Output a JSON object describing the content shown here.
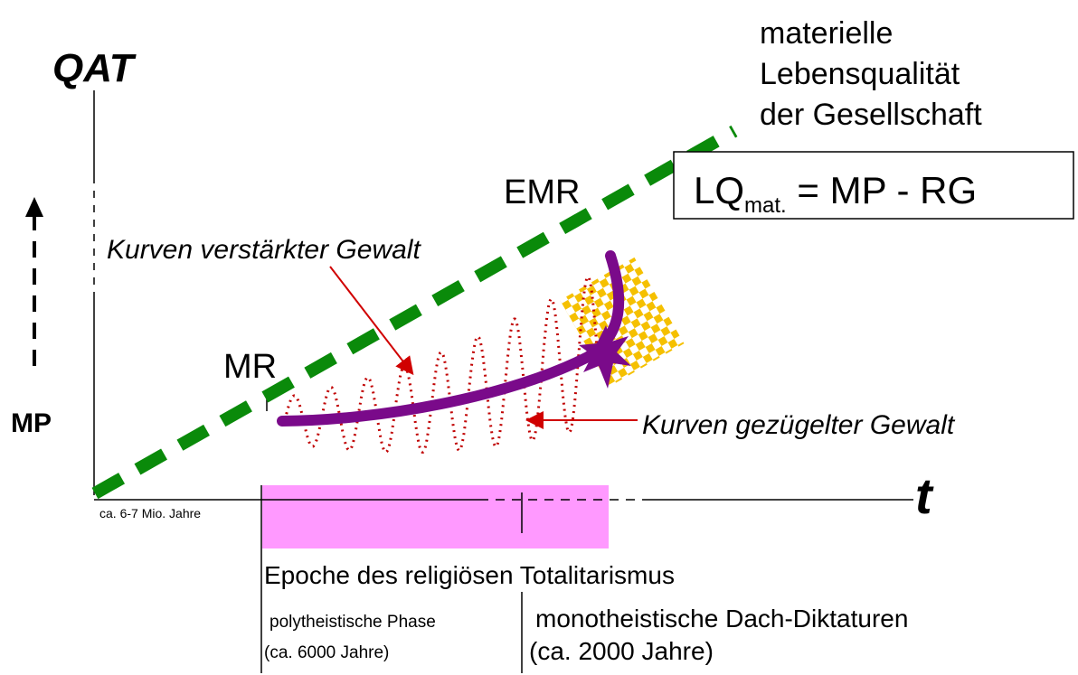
{
  "y_axis_label": "QAT",
  "x_axis_label": "t",
  "side_label": "MP",
  "line_label": [
    "materielle",
    "Lebensqualität",
    "der Gesellschaft"
  ],
  "formula": {
    "main": "LQ",
    "sub": "mat.",
    "rest": " = MP - RG"
  },
  "points": {
    "emr": "EMR",
    "mr": "MR"
  },
  "annotations": {
    "violence_up": "Kurven verstärkter Gewalt",
    "violence_down": "Kurven gezügelter Gewalt"
  },
  "timeline": {
    "start": "ca. 6-7 Mio. Jahre",
    "epoch": "Epoche des religiösen Totalitarismus",
    "phase1": "polytheistische Phase",
    "phase1_span": "(ca. 6000 Jahre)",
    "phase2": "monotheistische Dach-Diktaturen",
    "phase2_span": "(ca. 2000 Jahre)"
  }
}
